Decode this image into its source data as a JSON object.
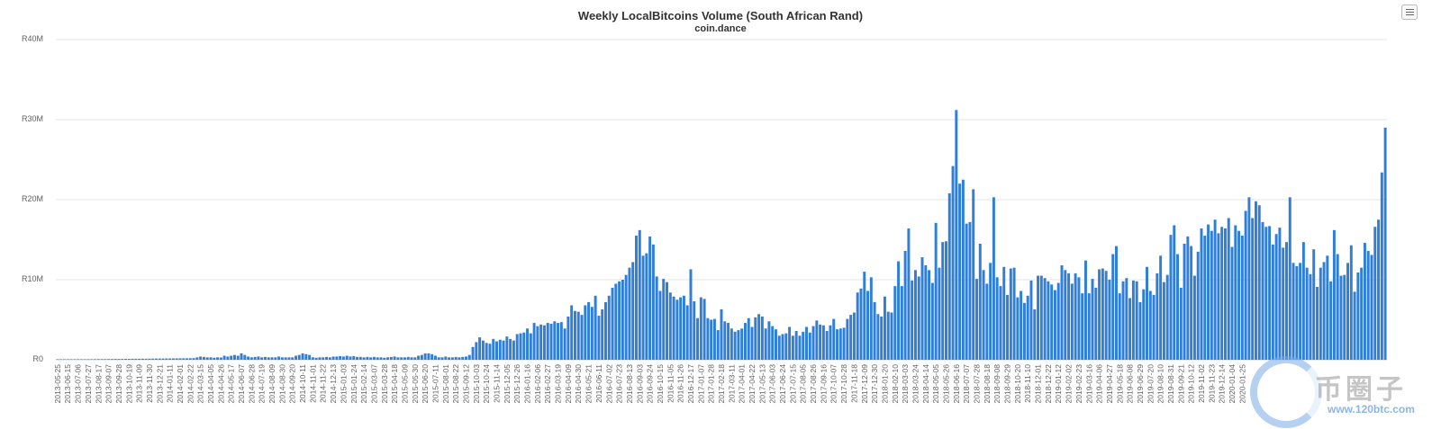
{
  "chart_data": {
    "type": "bar",
    "title": "Weekly LocalBitcoins Volume (South African Rand)",
    "subtitle": "coin.dance",
    "xlabel": "",
    "ylabel": "",
    "ylim": [
      0,
      40000000
    ],
    "y_ticks": [
      {
        "value": 0,
        "label": "R0"
      },
      {
        "value": 10000000,
        "label": "R10M"
      },
      {
        "value": 20000000,
        "label": "R20M"
      },
      {
        "value": 30000000,
        "label": "R30M"
      },
      {
        "value": 40000000,
        "label": "R40M"
      }
    ],
    "grid": true,
    "legend": false,
    "bar_color": "#2f7ed8",
    "start_date": "2013-05-25",
    "x_tick_labels": [
      "2013-05-25",
      "2013-06-15",
      "2013-07-06",
      "2013-07-27",
      "2013-08-17",
      "2013-09-07",
      "2013-09-28",
      "2013-10-19",
      "2013-11-09",
      "2013-11-30",
      "2013-12-21",
      "2014-01-11",
      "2014-02-01",
      "2014-02-22",
      "2014-03-15",
      "2014-04-05",
      "2014-04-26",
      "2014-05-17",
      "2014-06-07",
      "2014-06-28",
      "2014-07-19",
      "2014-08-09",
      "2014-08-30",
      "2014-09-20",
      "2014-10-11",
      "2014-11-01",
      "2014-11-22",
      "2014-12-13",
      "2015-01-03",
      "2015-01-24",
      "2015-02-14",
      "2015-03-07",
      "2015-03-28",
      "2015-04-18",
      "2015-05-09",
      "2015-05-30",
      "2015-06-20",
      "2015-07-11",
      "2015-08-01",
      "2015-08-22",
      "2015-09-12",
      "2015-10-03",
      "2015-10-24",
      "2015-11-14",
      "2015-12-05",
      "2015-12-26",
      "2016-01-16",
      "2016-02-06",
      "2016-02-27",
      "2016-03-19",
      "2016-04-09",
      "2016-04-30",
      "2016-05-21",
      "2016-06-11",
      "2016-07-02",
      "2016-07-23",
      "2016-08-13",
      "2016-09-03",
      "2016-09-24",
      "2016-10-15",
      "2016-11-05",
      "2016-11-26",
      "2016-12-17",
      "2017-01-07",
      "2017-01-28",
      "2017-02-18",
      "2017-03-11",
      "2017-04-01",
      "2017-04-22",
      "2017-05-13",
      "2017-06-03",
      "2017-06-24",
      "2017-07-15",
      "2017-08-05",
      "2017-08-26",
      "2017-09-16",
      "2017-10-07",
      "2017-10-28",
      "2017-11-18",
      "2017-12-09",
      "2017-12-30",
      "2018-01-20",
      "2018-02-10",
      "2018-03-03",
      "2018-03-24",
      "2018-04-14",
      "2018-05-05",
      "2018-05-26",
      "2018-06-16",
      "2018-07-07",
      "2018-07-28",
      "2018-08-18",
      "2018-09-08",
      "2018-09-29",
      "2018-10-20",
      "2018-11-10",
      "2018-12-01",
      "2018-12-22",
      "2019-01-12",
      "2019-02-02",
      "2019-02-23",
      "2019-03-16",
      "2019-04-06",
      "2019-04-27",
      "2019-05-18",
      "2019-06-08",
      "2019-06-29",
      "2019-07-20",
      "2019-08-10",
      "2019-08-31",
      "2019-09-21",
      "2019-10-12",
      "2019-11-02",
      "2019-11-23",
      "2019-12-14",
      "2020-01-04",
      "2020-01-25"
    ],
    "values": [
      0.05,
      0.05,
      0.05,
      0.05,
      0.05,
      0.06,
      0.06,
      0.06,
      0.06,
      0.07,
      0.07,
      0.07,
      0.08,
      0.08,
      0.08,
      0.09,
      0.09,
      0.1,
      0.1,
      0.1,
      0.11,
      0.11,
      0.12,
      0.12,
      0.12,
      0.13,
      0.13,
      0.14,
      0.14,
      0.15,
      0.15,
      0.15,
      0.16,
      0.16,
      0.17,
      0.17,
      0.18,
      0.18,
      0.18,
      0.19,
      0.2,
      0.3,
      0.4,
      0.35,
      0.3,
      0.3,
      0.25,
      0.3,
      0.28,
      0.5,
      0.4,
      0.5,
      0.6,
      0.5,
      0.8,
      0.6,
      0.4,
      0.3,
      0.35,
      0.4,
      0.3,
      0.35,
      0.3,
      0.3,
      0.3,
      0.4,
      0.3,
      0.3,
      0.3,
      0.3,
      0.5,
      0.6,
      0.8,
      0.7,
      0.6,
      0.3,
      0.25,
      0.3,
      0.3,
      0.35,
      0.3,
      0.4,
      0.4,
      0.45,
      0.4,
      0.5,
      0.4,
      0.45,
      0.35,
      0.35,
      0.3,
      0.35,
      0.3,
      0.35,
      0.3,
      0.3,
      0.25,
      0.3,
      0.35,
      0.4,
      0.3,
      0.3,
      0.3,
      0.35,
      0.3,
      0.3,
      0.5,
      0.6,
      0.8,
      0.8,
      0.7,
      0.5,
      0.3,
      0.3,
      0.4,
      0.3,
      0.3,
      0.35,
      0.3,
      0.35,
      0.4,
      0.6,
      1.6,
      2.2,
      2.8,
      2.4,
      2.1,
      2.0,
      2.6,
      2.3,
      2.5,
      2.4,
      2.9,
      2.6,
      2.4,
      3.2,
      3.3,
      3.4,
      3.9,
      3.3,
      4.6,
      4.2,
      4.4,
      4.3,
      4.6,
      4.5,
      4.8,
      4.6,
      4.7,
      3.9,
      5.4,
      6.8,
      6.1,
      6.0,
      5.6,
      6.8,
      7.2,
      6.6,
      8.0,
      5.5,
      6.3,
      7.2,
      8.0,
      9.0,
      9.5,
      9.8,
      10.0,
      10.6,
      11.5,
      12.2,
      15.5,
      16.2,
      13.0,
      13.3,
      15.4,
      14.4,
      10.4,
      8.6,
      10.1,
      9.7,
      8.4,
      7.9,
      7.5,
      7.8,
      8.0,
      6.8,
      11.3,
      7.3,
      5.2,
      7.8,
      7.6,
      5.2,
      5.0,
      5.1,
      3.7,
      6.3,
      4.8,
      4.6,
      3.9,
      3.5,
      3.7,
      3.9,
      4.6,
      5.2,
      4.1,
      5.3,
      5.7,
      5.4,
      3.9,
      4.8,
      4.2,
      3.8,
      3.0,
      3.2,
      3.3,
      4.1,
      3.0,
      3.6,
      3.0,
      3.5,
      4.1,
      3.4,
      4.2,
      4.9,
      4.4,
      4.3,
      3.6,
      4.3,
      5.1,
      3.8,
      3.9,
      4.0,
      5.1,
      5.6,
      5.9,
      8.4,
      8.9,
      11.0,
      8.6,
      10.3,
      7.2,
      5.7,
      5.4,
      7.9,
      6.0,
      5.9,
      9.2,
      12.3,
      9.2,
      13.6,
      16.4,
      9.9,
      11.2,
      10.4,
      12.8,
      11.8,
      11.2,
      9.6,
      17.1,
      11.5,
      14.7,
      14.8,
      20.8,
      24.2,
      31.2,
      22.0,
      22.5,
      17.0,
      17.2,
      21.3,
      10.1,
      14.5,
      11.2,
      9.5,
      12.1,
      20.3,
      10.3,
      9.2,
      11.6,
      8.1,
      11.4,
      11.5,
      7.8,
      8.6,
      7.1,
      8.0,
      9.9,
      6.3,
      10.5,
      10.5,
      10.2,
      9.8,
      9.4,
      8.7,
      9.6,
      11.8,
      11.2,
      10.8,
      9.5,
      10.8,
      10.3,
      8.3,
      12.4,
      8.3,
      10.1,
      9.0,
      11.3,
      11.4,
      11.1,
      10.0,
      13.2,
      14.2,
      8.3,
      9.8,
      10.2,
      7.7,
      9.9,
      9.8,
      7.2,
      8.8,
      11.6,
      8.6,
      8.1,
      10.8,
      13.0,
      9.7,
      10.6,
      15.6,
      16.8,
      13.2,
      9.0,
      14.5,
      15.4,
      14.2,
      10.5,
      13.5,
      16.4,
      15.5,
      16.9,
      16.1,
      17.5,
      15.8,
      16.6,
      16.4,
      17.7,
      14.1,
      16.8,
      16.1,
      15.5,
      18.6,
      20.3,
      17.7,
      19.8,
      19.3,
      17.2,
      16.6,
      16.7,
      14.4,
      15.7,
      16.5,
      14.0,
      14.7,
      20.3,
      12.1,
      11.7,
      12.1,
      14.7,
      11.5,
      10.7,
      13.8,
      9.1,
      11.5,
      12.2,
      13.0,
      9.8,
      16.2,
      13.2,
      10.5,
      10.6,
      12.1,
      14.3,
      8.5,
      10.9,
      11.5,
      14.6,
      13.6,
      13.1,
      16.6,
      17.5,
      23.4,
      29.0
    ]
  }
}
